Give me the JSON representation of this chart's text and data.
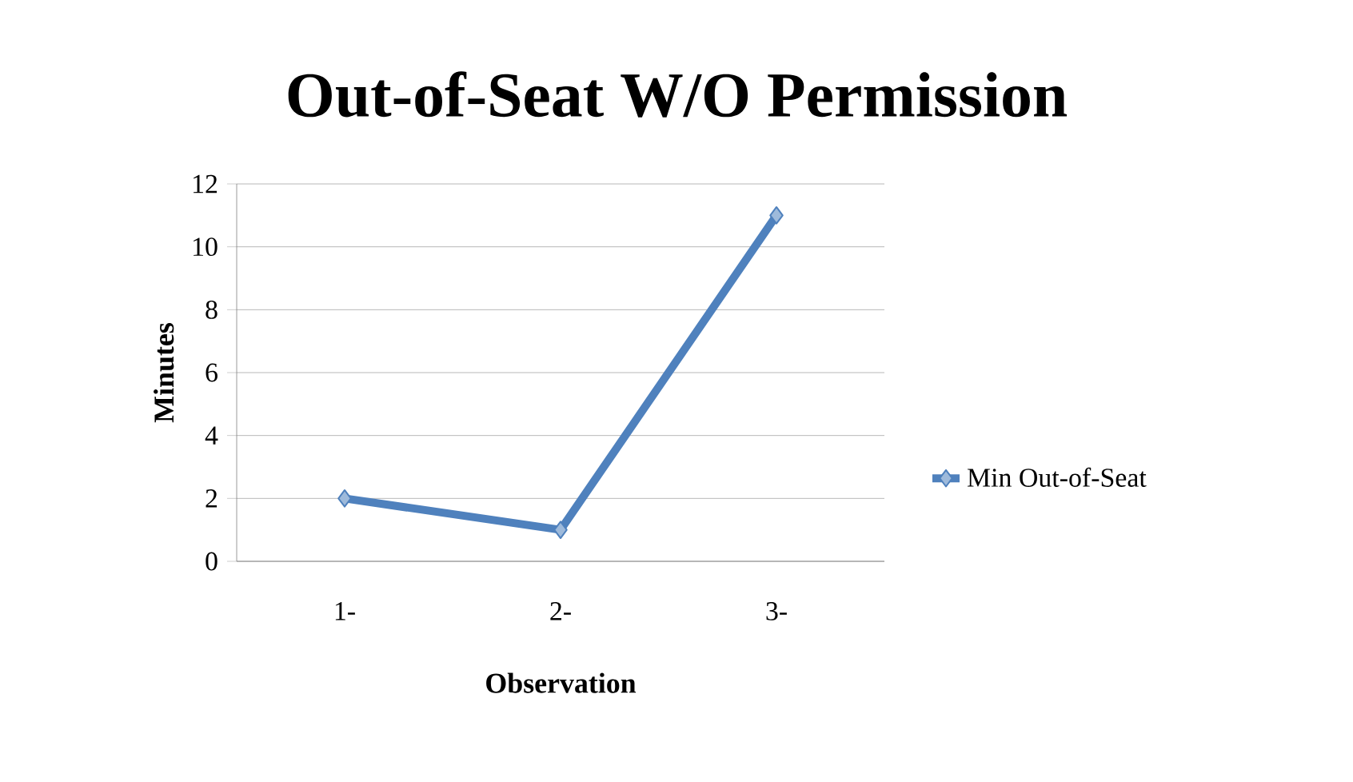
{
  "chart_data": {
    "type": "line",
    "title": "Out-of-Seat W/O Permission",
    "xlabel": "Observation",
    "ylabel": "Minutes",
    "categories": [
      "1-",
      "2-",
      "3-"
    ],
    "series": [
      {
        "name": "Min Out-of-Seat",
        "color": "#4f81bd",
        "values": [
          2,
          1,
          11
        ]
      }
    ],
    "ylim": [
      0,
      12
    ],
    "yticks": [
      0,
      2,
      4,
      6,
      8,
      10,
      12
    ],
    "grid": "y",
    "legend": "right",
    "marker": "diamond",
    "line_style": "solid"
  }
}
